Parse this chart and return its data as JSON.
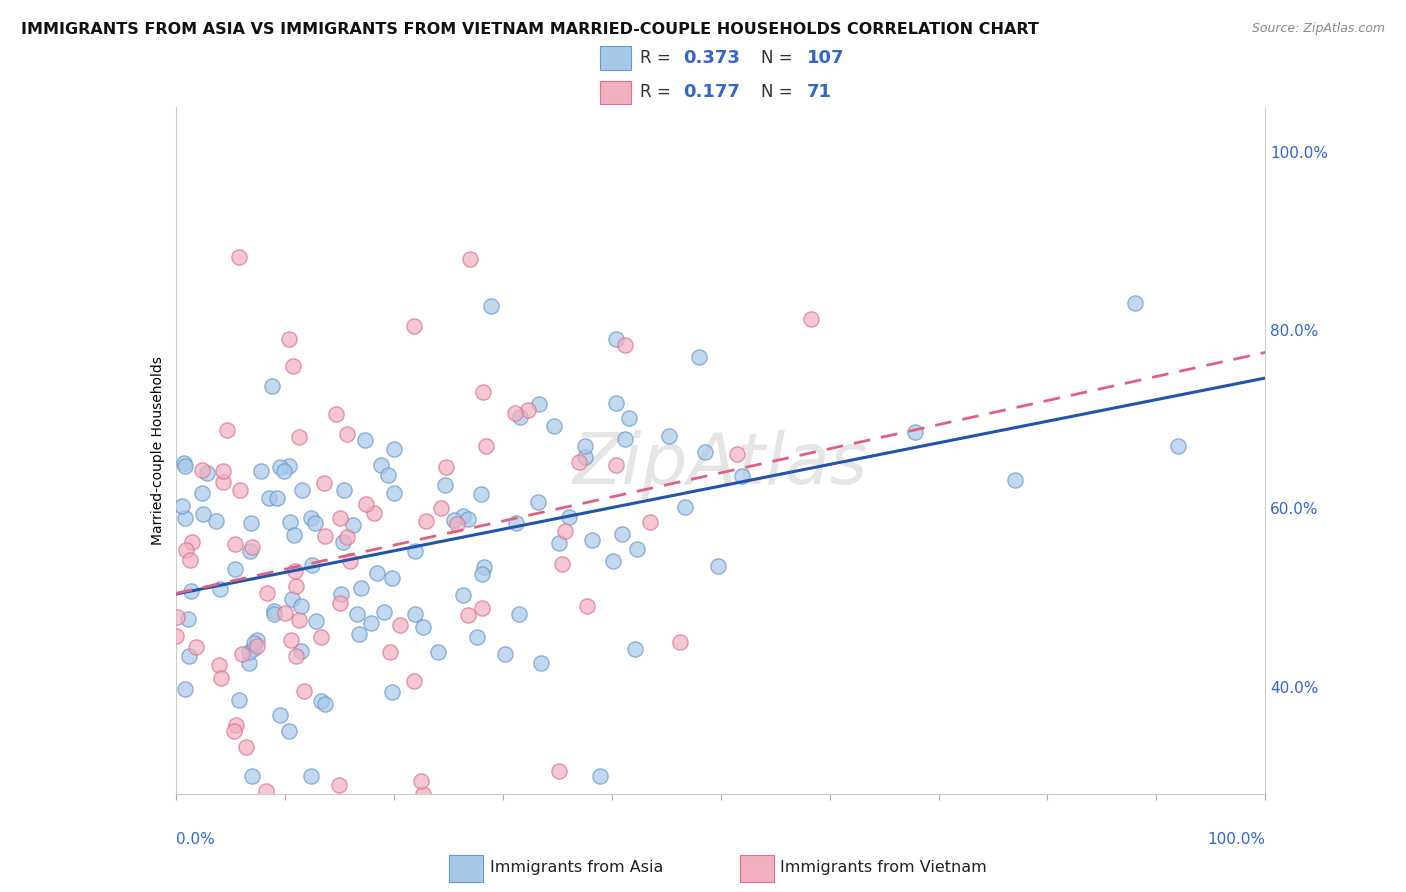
{
  "title": "IMMIGRANTS FROM ASIA VS IMMIGRANTS FROM VIETNAM MARRIED-COUPLE HOUSEHOLDS CORRELATION CHART",
  "source": "Source: ZipAtlas.com",
  "ylabel": "Married-couple Households",
  "series1_label": "Immigrants from Asia",
  "series2_label": "Immigrants from Vietnam",
  "series1_color": "#a8c8e8",
  "series2_color": "#f0b0c0",
  "series1_edge_color": "#6699cc",
  "series2_edge_color": "#e07090",
  "series1_line_color": "#2255aa",
  "series2_line_color": "#e06080",
  "R1": 0.373,
  "N1": 107,
  "R2": 0.177,
  "N2": 71,
  "rv_color": "#3366cc",
  "n_color": "#3366cc",
  "background_color": "#ffffff",
  "grid_color": "#cccccc",
  "title_fontsize": 11.5,
  "axis_label_fontsize": 10,
  "watermark": "ZipAtlas",
  "xlim": [
    0.0,
    1.0
  ],
  "ylim": [
    0.28,
    1.05
  ],
  "ytick_vals": [
    0.4,
    0.6,
    0.8,
    1.0
  ],
  "ytick_labels": [
    "40.0%",
    "60.0%",
    "80.0%",
    "100.0%"
  ]
}
